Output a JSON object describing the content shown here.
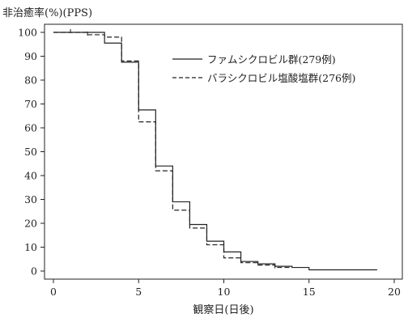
{
  "chart_data": {
    "type": "line",
    "step": true,
    "ylabel": "非治癒率(%)(PPS)",
    "xlabel": "観察日(日後)",
    "xlim": [
      0,
      20
    ],
    "ylim": [
      0,
      100
    ],
    "xticks": [
      0,
      5,
      10,
      15,
      20
    ],
    "yticks": [
      0,
      10,
      20,
      30,
      40,
      50,
      60,
      70,
      80,
      90,
      100
    ],
    "legend_position": "top-right",
    "grid": false,
    "series": [
      {
        "name": "ファムシクロビル群(279例)",
        "style": "solid",
        "x": [
          0,
          3,
          4,
          5,
          6,
          7,
          8,
          9,
          10,
          11,
          12,
          13,
          14,
          15,
          19
        ],
        "y": [
          100,
          95.5,
          87.5,
          67.5,
          44,
          29,
          19.5,
          12.5,
          8,
          4,
          3,
          2,
          1.5,
          0.5,
          0.5
        ]
      },
      {
        "name": "バラシクロビル塩酸塩群(276例)",
        "style": "dashed",
        "x": [
          0,
          2,
          3,
          4,
          5,
          6,
          7,
          8,
          9,
          10,
          11,
          12,
          13,
          14
        ],
        "y": [
          100,
          99,
          98,
          88,
          62.5,
          42,
          25.5,
          18,
          11,
          5.5,
          3.5,
          2.5,
          1.5,
          1.5
        ],
        "censor_x": [
          1,
          2,
          13
        ]
      }
    ]
  }
}
